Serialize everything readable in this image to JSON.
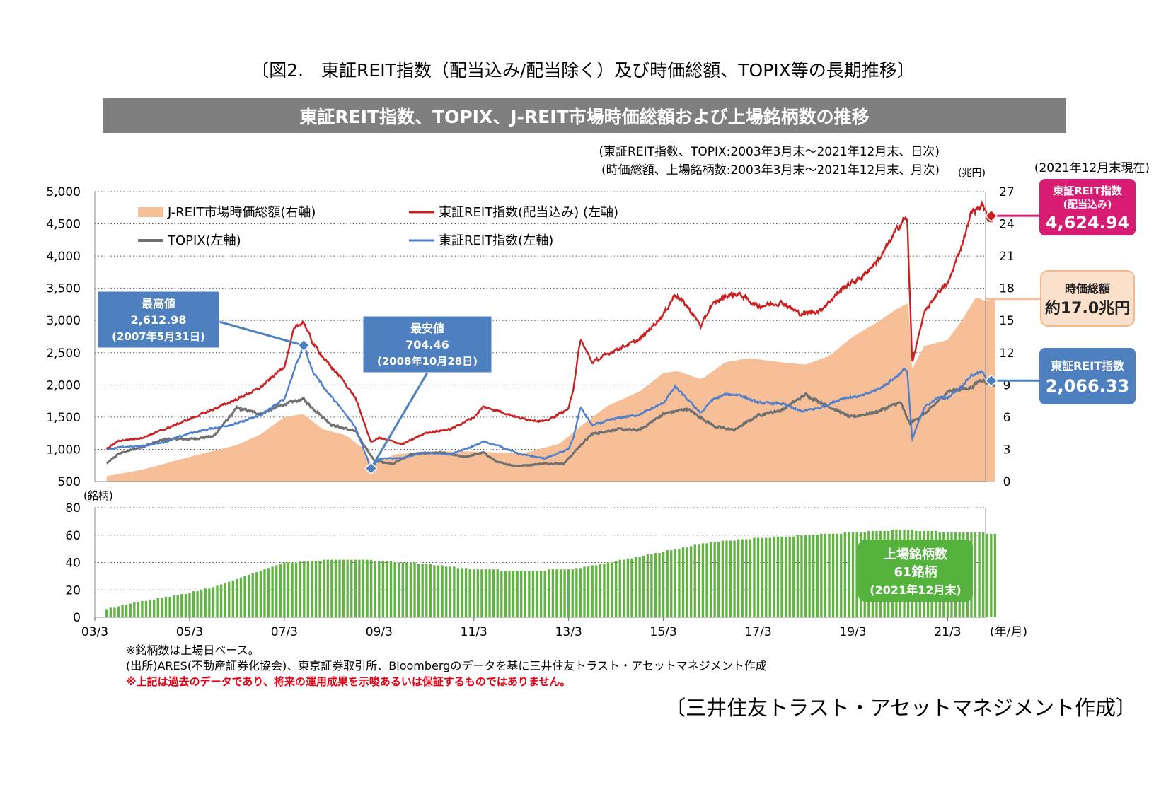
{
  "figure_caption": "〔図2.　東証REIT指数（配当込み/配当除く）及び時価総額、TOPIX等の長期推移〕",
  "banner_title": "東証REIT指数、TOPIX、J-REIT市場時価総額および上場銘柄数の推移",
  "period_note_1": "(東証REIT指数、TOPIX:2003年3月末～2021年12月末、日次)",
  "period_note_2": "(時価総額、上場銘柄数:2003年3月末～2021年12月末、月次)",
  "as_of": "(2021年12月末現在)",
  "colors": {
    "market_cap": "#f6bf97",
    "reit_div": "#cc1f1f",
    "topix": "#707070",
    "reit": "#4f7fcc",
    "listings": "#5fb540",
    "banner": "#7f7f7f",
    "box_blue": "#4e80c0",
    "box_pink": "#d81b73",
    "box_peach": "#fbe0cc",
    "box_green": "#55b33d",
    "warning": "#e60012"
  },
  "chart_data": [
    {
      "type": "line",
      "ylabel_left": "",
      "ylabel_right": "(兆円)",
      "ylim_left": [
        500,
        5000
      ],
      "ylim_right": [
        0,
        27
      ],
      "yticks_left": [
        "5,000",
        "4,500",
        "4,000",
        "3,500",
        "3,000",
        "2,500",
        "2,000",
        "1,500",
        "1,000",
        "500"
      ],
      "yticks_right": [
        "27",
        "24",
        "21",
        "18",
        "15",
        "12",
        "9",
        "6",
        "3",
        "0"
      ],
      "legend": {
        "market_cap": "J-REIT市場時価総額(右軸)",
        "reit_div": "東証REIT指数(配当込み) (左軸)",
        "topix": "TOPIX(左軸)",
        "reit": "東証REIT指数(左軸)"
      },
      "legend_position": "top-left",
      "grid": "horizontal dotted",
      "series": [
        {
          "name": "J-REIT市場時価総額(右軸)",
          "axis": "right",
          "type": "area",
          "x": [
            2003.25,
            2004.0,
            2005.0,
            2006.0,
            2006.5,
            2007.0,
            2007.4,
            2007.8,
            2008.3,
            2008.7,
            2008.85,
            2009.3,
            2010.0,
            2011.0,
            2012.0,
            2012.8,
            2013.3,
            2013.8,
            2014.5,
            2015.0,
            2015.3,
            2015.8,
            2016.3,
            2016.8,
            2017.5,
            2018.0,
            2018.5,
            2019.0,
            2019.5,
            2019.9,
            2020.2,
            2020.25,
            2020.5,
            2021.0,
            2021.3,
            2021.6,
            2021.8,
            2022.0
          ],
          "y": [
            0.5,
            1.1,
            2.3,
            3.4,
            4.4,
            6.0,
            6.3,
            4.9,
            4.3,
            3.0,
            1.4,
            2.5,
            2.8,
            2.8,
            2.6,
            3.5,
            5.3,
            7.0,
            8.4,
            10.1,
            10.3,
            9.5,
            11.1,
            11.5,
            11.1,
            10.9,
            11.7,
            13.5,
            14.8,
            16.0,
            16.7,
            10.5,
            12.6,
            13.2,
            15.0,
            17.2,
            16.8,
            17.0
          ]
        },
        {
          "name": "東証REIT指数(配当込み) (左軸)",
          "axis": "left",
          "x": [
            2003.25,
            2003.5,
            2004.0,
            2004.5,
            2005.0,
            2005.5,
            2006.0,
            2006.5,
            2007.0,
            2007.2,
            2007.4,
            2007.6,
            2007.9,
            2008.2,
            2008.5,
            2008.83,
            2009.0,
            2009.5,
            2010.0,
            2010.5,
            2011.0,
            2011.2,
            2011.5,
            2012.0,
            2012.5,
            2013.0,
            2013.1,
            2013.25,
            2013.5,
            2014.0,
            2014.5,
            2015.0,
            2015.25,
            2015.5,
            2015.8,
            2016.0,
            2016.3,
            2016.6,
            2017.0,
            2017.5,
            2017.9,
            2018.3,
            2018.8,
            2019.2,
            2019.6,
            2019.9,
            2020.1,
            2020.15,
            2020.2,
            2020.25,
            2020.5,
            2020.8,
            2021.0,
            2021.3,
            2021.5,
            2021.75,
            2021.85,
            2022.0
          ],
          "y": [
            1010,
            1130,
            1180,
            1320,
            1470,
            1620,
            1780,
            1960,
            2290,
            2850,
            2990,
            2650,
            2350,
            2110,
            1800,
            1110,
            1180,
            1080,
            1260,
            1310,
            1500,
            1660,
            1600,
            1480,
            1430,
            1630,
            1950,
            2700,
            2350,
            2550,
            2700,
            3090,
            3410,
            3220,
            2910,
            3220,
            3380,
            3410,
            3220,
            3280,
            3100,
            3150,
            3510,
            3680,
            4000,
            4380,
            4600,
            4530,
            3400,
            2350,
            3100,
            3450,
            3560,
            4180,
            4680,
            4790,
            4560,
            4624.94
          ]
        },
        {
          "name": "TOPIX(左軸)",
          "axis": "left",
          "x": [
            2003.25,
            2003.5,
            2004.0,
            2004.5,
            2005.0,
            2005.5,
            2006.0,
            2006.5,
            2007.0,
            2007.4,
            2007.6,
            2008.0,
            2008.5,
            2008.9,
            2009.3,
            2009.7,
            2010.3,
            2010.8,
            2011.2,
            2011.5,
            2011.9,
            2012.5,
            2012.9,
            2013.3,
            2013.5,
            2014.0,
            2014.5,
            2015.0,
            2015.5,
            2016.1,
            2016.5,
            2017.0,
            2017.5,
            2018.0,
            2018.4,
            2018.95,
            2019.5,
            2020.0,
            2020.2,
            2020.6,
            2021.0,
            2021.5,
            2021.7,
            2022.0
          ],
          "y": [
            780,
            930,
            1040,
            1160,
            1160,
            1200,
            1640,
            1550,
            1700,
            1780,
            1640,
            1380,
            1280,
            820,
            780,
            930,
            950,
            880,
            950,
            800,
            740,
            780,
            780,
            1100,
            1240,
            1310,
            1300,
            1550,
            1630,
            1350,
            1300,
            1530,
            1610,
            1850,
            1700,
            1500,
            1580,
            1730,
            1400,
            1600,
            1900,
            1960,
            2090,
            1990
          ]
        },
        {
          "name": "東証REIT指数(左軸)",
          "axis": "left",
          "x": [
            2003.25,
            2003.5,
            2004.0,
            2004.5,
            2005.0,
            2005.5,
            2006.0,
            2006.5,
            2007.0,
            2007.25,
            2007.41,
            2007.6,
            2007.9,
            2008.2,
            2008.5,
            2008.83,
            2009.0,
            2009.5,
            2010.0,
            2010.5,
            2011.0,
            2011.2,
            2011.5,
            2012.0,
            2012.5,
            2013.0,
            2013.1,
            2013.25,
            2013.5,
            2014.0,
            2014.5,
            2015.0,
            2015.25,
            2015.5,
            2015.8,
            2016.0,
            2016.3,
            2016.6,
            2017.0,
            2017.5,
            2017.9,
            2018.3,
            2018.8,
            2019.2,
            2019.6,
            2019.9,
            2020.1,
            2020.15,
            2020.2,
            2020.25,
            2020.5,
            2020.8,
            2021.0,
            2021.3,
            2021.5,
            2021.75,
            2021.85,
            2022.0
          ],
          "y": [
            1000,
            1030,
            1050,
            1120,
            1250,
            1330,
            1400,
            1530,
            1780,
            2320,
            2612.98,
            2210,
            1900,
            1630,
            1350,
            704.46,
            850,
            870,
            950,
            920,
            1050,
            1120,
            1060,
            920,
            860,
            1000,
            1180,
            1650,
            1370,
            1480,
            1540,
            1720,
            1970,
            1780,
            1560,
            1750,
            1850,
            1850,
            1720,
            1710,
            1590,
            1640,
            1800,
            1830,
            1960,
            2120,
            2250,
            2200,
            1650,
            1150,
            1650,
            1800,
            1800,
            1990,
            2150,
            2200,
            2060,
            2066.33
          ]
        }
      ],
      "annotations": [
        {
          "label": "最高値",
          "value": "2,612.98",
          "date": "(2007年5月31日)",
          "x": 2007.41,
          "y": 2612.98
        },
        {
          "label": "最安値",
          "value": "704.46",
          "date": "(2008年10月28日)",
          "x": 2008.83,
          "y": 704.46
        }
      ],
      "end_labels": {
        "reit_div": {
          "title": "東証REIT指数",
          "subtitle": "(配当込み)",
          "value": "4,624.94",
          "y": 4624.94
        },
        "market_cap": {
          "title": "時価総額",
          "value": "約17.0兆円",
          "y": 17.0
        },
        "reit": {
          "title": "東証REIT指数",
          "value": "2,066.33",
          "y": 2066.33
        }
      }
    },
    {
      "type": "bar",
      "ylabel": "(銘柄)",
      "ylim": [
        0,
        80
      ],
      "yticks": [
        "80",
        "60",
        "40",
        "20",
        "0"
      ],
      "xlabel": "(年/月)",
      "x_ticks": [
        "03/3",
        "05/3",
        "07/3",
        "09/3",
        "11/3",
        "13/3",
        "15/3",
        "17/3",
        "19/3",
        "21/3"
      ],
      "x_tick_years": [
        2003,
        2005,
        2007,
        2009,
        2011,
        2013,
        2015,
        2017,
        2019,
        2021
      ],
      "x_range": [
        2003,
        2021.8
      ],
      "grid": "horizontal dotted",
      "series": [
        {
          "name": "上場銘柄数",
          "frequency": "monthly",
          "start": 2003.25,
          "end": 2022.0,
          "breakpoints_x": [
            2003.25,
            2004.0,
            2005.0,
            2005.5,
            2006.0,
            2006.5,
            2007.0,
            2007.5,
            2008.0,
            2008.7,
            2009.0,
            2010.0,
            2011.0,
            2012.0,
            2013.0,
            2014.0,
            2015.0,
            2016.0,
            2017.0,
            2018.0,
            2019.0,
            2020.0,
            2020.5,
            2021.0,
            2021.5,
            2022.0
          ],
          "breakpoints_y": [
            6,
            12,
            18,
            22,
            28,
            34,
            40,
            41,
            42,
            42,
            41,
            39,
            35,
            34,
            35,
            41,
            48,
            55,
            58,
            60,
            62,
            64,
            63,
            62,
            62,
            61
          ]
        }
      ],
      "callout": {
        "title": "上場銘柄数",
        "value": "61銘柄",
        "date": "(2021年12月末)"
      }
    }
  ],
  "footnotes": {
    "note1": "※銘柄数は上場日ベース。",
    "note2": "(出所)ARES(不動産証券化協会)、東京証券取引所、Bloombergのデータを基に三井住友トラスト・アセットマネジメント作成",
    "warning": "※上記は過去のデータであり、将来の運用成果を示唆あるいは保証するものではありません。"
  },
  "credit": "〔三井住友トラスト・アセットマネジメント作成〕"
}
